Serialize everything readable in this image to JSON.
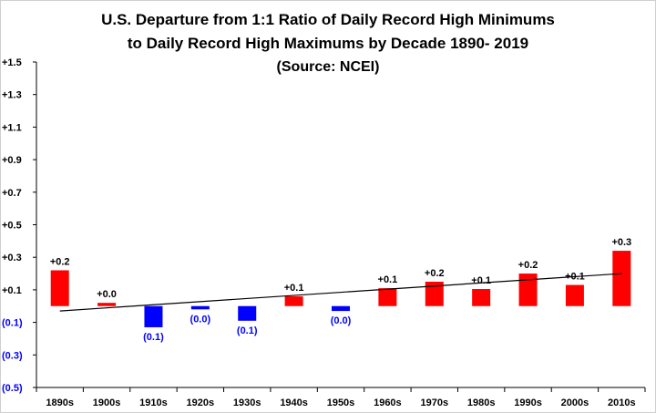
{
  "chart_data": {
    "type": "bar",
    "title": [
      "U.S. Departure from 1:1 Ratio of Daily Record High Minimums",
      "to Daily Record High Maximums by Decade 1890- 2019",
      "(Source: NCEI)"
    ],
    "xlabel": "",
    "ylabel": "",
    "categories": [
      "1890s",
      "1900s",
      "1910s",
      "1920s",
      "1930s",
      "1940s",
      "1950s",
      "1960s",
      "1970s",
      "1980s",
      "1990s",
      "2000s",
      "2010s"
    ],
    "values": [
      0.22,
      0.02,
      -0.13,
      -0.02,
      -0.09,
      0.06,
      -0.03,
      0.11,
      0.15,
      0.105,
      0.2,
      0.13,
      0.34
    ],
    "data_labels": [
      "+0.2",
      "+0.0",
      "(0.1)",
      "(0.0)",
      "(0.1)",
      "+0.1",
      "(0.0)",
      "+0.1",
      "+0.2",
      "+0.1",
      "+0.2",
      "+0.1",
      "+0.3"
    ],
    "ylim": [
      -0.5,
      1.5
    ],
    "yticks": [
      1.5,
      1.3,
      1.1,
      0.9,
      0.7,
      0.5,
      0.3,
      0.1,
      -0.1,
      -0.3,
      -0.5
    ],
    "ytick_labels": [
      "+1.5",
      "+1.3",
      "+1.1",
      "+0.9",
      "+0.7",
      "+0.5",
      "+0.3",
      "+0.1",
      "(0.1)",
      "(0.3)",
      "(0.5)"
    ],
    "trendline": {
      "type": "linear",
      "start": -0.03,
      "end": 0.2
    },
    "grid": false,
    "legend": "none",
    "colors": {
      "positive": "#ff0000",
      "negative": "#0000ff",
      "trend": "#000000",
      "text": "#000000"
    }
  }
}
